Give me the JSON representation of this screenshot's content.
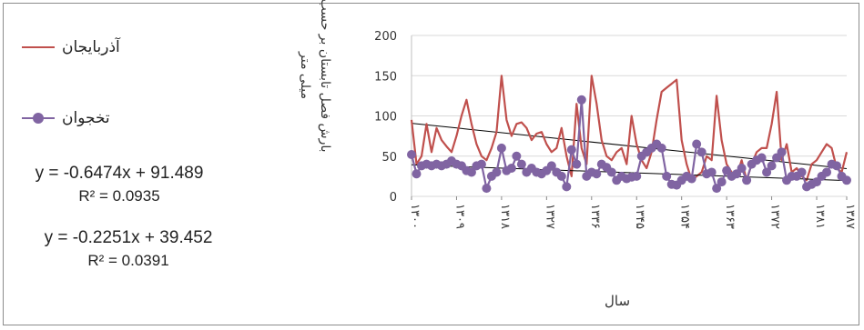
{
  "legend": {
    "series1_label": "آذربایجان",
    "series2_label": "تخجوان"
  },
  "equations": {
    "eq1_line": "y = -0.6474x + 91.489",
    "eq1_r2": "R² = 0.0935",
    "eq2_line": "y = -0.2251x + 39.452",
    "eq2_r2": "R² = 0.0391"
  },
  "colors": {
    "series1": "#c0504d",
    "series2": "#8064a2",
    "trend": "#000000",
    "grid": "#d9d9d9"
  },
  "chart_data": {
    "type": "line",
    "ylabel": "بارش فصل تابستان بر حسب میلی متر",
    "xlabel": "سال",
    "ylim": [
      0,
      200
    ],
    "yticks": [
      0,
      50,
      100,
      150,
      200
    ],
    "grid": true,
    "legend_position": "left",
    "categories": [
      "۱۳۰۰",
      "۱۳۰۱",
      "۱۳۰۲",
      "۱۳۰۳",
      "۱۳۰۴",
      "۱۳۰۵",
      "۱۳۰۶",
      "۱۳۰۷",
      "۱۳۰۸",
      "۱۳۰۹",
      "۱۳۱۰",
      "۱۳۱۱",
      "۱۳۱۲",
      "۱۳۱۳",
      "۱۳۱۴",
      "۱۳۱۵",
      "۱۳۱۶",
      "۱۳۱۷",
      "۱۳۱۸",
      "۱۳۱۹",
      "۱۳۲۰",
      "۱۳۲۱",
      "۱۳۲۲",
      "۱۳۲۳",
      "۱۳۲۴",
      "۱۳۲۵",
      "۱۳۲۶",
      "۱۳۲۷",
      "۱۳۲۸",
      "۱۳۲۹",
      "۱۳۳۰",
      "۱۳۳۱",
      "۱۳۳۲",
      "۱۳۳۳",
      "۱۳۳۴",
      "۱۳۳۵",
      "۱۳۳۶",
      "۱۳۳۷",
      "۱۳۳۸",
      "۱۳۳۹",
      "۱۳۴۰",
      "۱۳۴۱",
      "۱۳۴۲",
      "۱۳۴۳",
      "۱۳۴۴",
      "۱۳۴۵",
      "۱۳۴۶",
      "۱۳۴۷",
      "۱۳۴۸",
      "۱۳۴۹",
      "۱۳۵۰",
      "۱۳۵۱",
      "۱۳۵۲",
      "۱۳۵۳",
      "۱۳۵۴",
      "۱۳۵۵",
      "۱۳۵۶",
      "۱۳۵۷",
      "۱۳۵۸",
      "۱۳۵۹",
      "۱۳۶۰",
      "۱۳۶۱",
      "۱۳۶۲",
      "۱۳۶۳",
      "۱۳۶۴",
      "۱۳۶۵",
      "۱۳۶۶",
      "۱۳۶۷",
      "۱۳۶۸",
      "۱۳۶۹",
      "۱۳۷۰",
      "۱۳۷۱",
      "۱۳۷۲",
      "۱۳۷۳",
      "۱۳۷۴",
      "۱۳۷۵",
      "۱۳۷۶",
      "۱۳۷۷",
      "۱۳۷۸",
      "۱۳۷۹",
      "۱۳۸۰",
      "۱۳۸۱",
      "۱۳۸۲",
      "۱۳۸۳",
      "۱۳۸۴",
      "۱۳۸۵",
      "۱۳۸۶",
      "۱۳۸۷"
    ],
    "xtick_labels": [
      {
        "index": 0,
        "label": "۱۳۰۰"
      },
      {
        "index": 9,
        "label": "۱۳۰۹"
      },
      {
        "index": 18,
        "label": "۱۳۱۸"
      },
      {
        "index": 27,
        "label": "۱۳۲۷"
      },
      {
        "index": 36,
        "label": "۱۳۳۶"
      },
      {
        "index": 45,
        "label": "۱۳۴۵"
      },
      {
        "index": 54,
        "label": "۱۳۵۴"
      },
      {
        "index": 63,
        "label": "۱۳۶۳"
      },
      {
        "index": 72,
        "label": "۱۳۷۲"
      },
      {
        "index": 81,
        "label": "۱۳۸۱"
      },
      {
        "index": 87,
        "label": "۱۳۸۷"
      }
    ],
    "series": [
      {
        "name": "آذربایجان",
        "values": [
          95,
          40,
          50,
          90,
          55,
          85,
          70,
          62,
          55,
          75,
          100,
          120,
          90,
          65,
          50,
          45,
          60,
          80,
          150,
          95,
          75,
          90,
          92,
          85,
          70,
          78,
          80,
          65,
          55,
          60,
          85,
          50,
          25,
          115,
          60,
          40,
          150,
          115,
          70,
          50,
          45,
          55,
          60,
          40,
          100,
          65,
          45,
          35,
          55,
          95,
          130,
          135,
          140,
          145,
          70,
          40,
          20,
          25,
          30,
          50,
          45,
          125,
          70,
          40,
          30,
          25,
          45,
          20,
          40,
          55,
          60,
          60,
          90,
          130,
          45,
          65,
          30,
          35,
          25,
          20,
          40,
          45,
          55,
          65,
          60,
          35,
          30,
          55
        ],
        "trend": {
          "slope": -0.6474,
          "intercept": 91.489
        }
      },
      {
        "name": "تخجوان",
        "values": [
          52,
          28,
          38,
          40,
          38,
          40,
          38,
          40,
          44,
          40,
          38,
          32,
          30,
          38,
          40,
          10,
          25,
          30,
          60,
          32,
          35,
          50,
          40,
          30,
          35,
          30,
          28,
          32,
          38,
          30,
          25,
          12,
          58,
          40,
          120,
          25,
          30,
          28,
          40,
          36,
          30,
          20,
          25,
          22,
          24,
          25,
          50,
          55,
          60,
          65,
          60,
          25,
          15,
          14,
          20,
          25,
          22,
          65,
          55,
          28,
          30,
          10,
          18,
          32,
          25,
          28,
          35,
          20,
          40,
          45,
          48,
          30,
          38,
          48,
          55,
          20,
          25,
          25,
          30,
          12,
          15,
          18,
          25,
          30,
          40,
          38,
          25,
          20
        ],
        "trend": {
          "slope": -0.2251,
          "intercept": 39.452
        }
      }
    ]
  }
}
